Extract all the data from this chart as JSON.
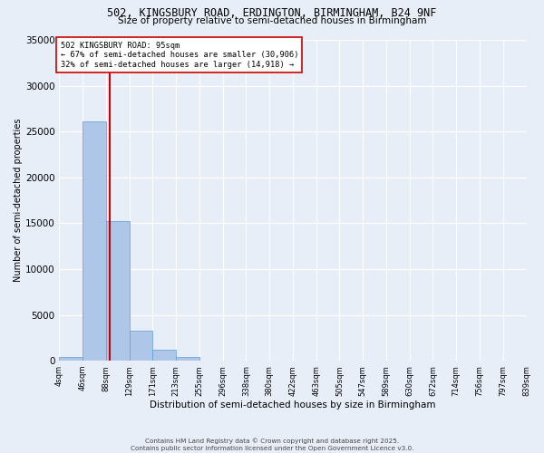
{
  "title_line1": "502, KINGSBURY ROAD, ERDINGTON, BIRMINGHAM, B24 9NF",
  "title_line2": "Size of property relative to semi-detached houses in Birmingham",
  "xlabel": "Distribution of semi-detached houses by size in Birmingham",
  "ylabel": "Number of semi-detached properties",
  "footer_line1": "Contains HM Land Registry data © Crown copyright and database right 2025.",
  "footer_line2": "Contains public sector information licensed under the Open Government Licence v3.0.",
  "bin_labels": [
    "4sqm",
    "46sqm",
    "88sqm",
    "129sqm",
    "171sqm",
    "213sqm",
    "255sqm",
    "296sqm",
    "338sqm",
    "380sqm",
    "422sqm",
    "463sqm",
    "505sqm",
    "547sqm",
    "589sqm",
    "630sqm",
    "672sqm",
    "714sqm",
    "756sqm",
    "797sqm",
    "839sqm"
  ],
  "bar_values": [
    400,
    26100,
    15200,
    3300,
    1200,
    400,
    0,
    0,
    0,
    0,
    0,
    0,
    0,
    0,
    0,
    0,
    0,
    0,
    0,
    0
  ],
  "bar_color": "#aec6e8",
  "bar_edge_color": "#5a9fd4",
  "background_color": "#e8eef8",
  "grid_color": "#ffffff",
  "vline_color": "#cc0000",
  "annotation_text": "502 KINGSBURY ROAD: 95sqm\n← 67% of semi-detached houses are smaller (30,906)\n32% of semi-detached houses are larger (14,918) →",
  "annotation_box_color": "#ffffff",
  "annotation_box_edge": "#cc0000",
  "ylim": [
    0,
    35000
  ],
  "yticks": [
    0,
    5000,
    10000,
    15000,
    20000,
    25000,
    30000,
    35000
  ],
  "num_bins": 20
}
